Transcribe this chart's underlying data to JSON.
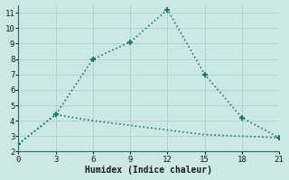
{
  "line1_x": [
    0,
    3,
    6,
    9,
    12,
    15,
    18,
    21
  ],
  "line1_y": [
    2.5,
    4.4,
    8.0,
    9.1,
    11.2,
    7.0,
    4.2,
    2.9
  ],
  "line2_x": [
    0,
    3,
    6,
    9,
    12,
    15,
    18,
    21
  ],
  "line2_y": [
    2.5,
    4.4,
    4.0,
    3.7,
    3.4,
    3.1,
    3.0,
    2.9
  ],
  "line_color": "#1a7a6e",
  "bg_color": "#cce8e4",
  "grid_color": "#b0d4d0",
  "xlabel": "Humidex (Indice chaleur)",
  "xlim": [
    0,
    21
  ],
  "ylim": [
    2,
    11.5
  ],
  "xticks": [
    0,
    3,
    6,
    9,
    12,
    15,
    18,
    21
  ],
  "yticks": [
    2,
    3,
    4,
    5,
    6,
    7,
    8,
    9,
    10,
    11
  ]
}
